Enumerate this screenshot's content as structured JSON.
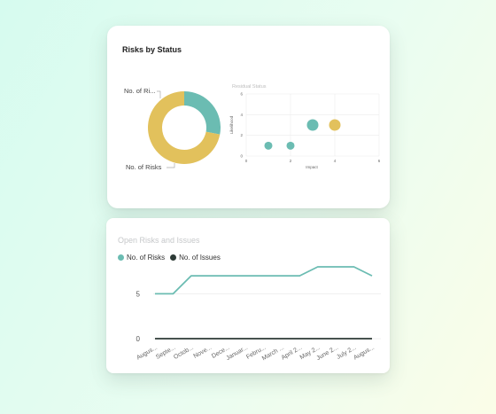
{
  "colors": {
    "teal": "#6bbcb2",
    "gold": "#e2c15c",
    "dark": "#2d3a36",
    "grid": "#ececec",
    "axis_text": "#666666"
  },
  "top_card": {
    "title": "Risks by Status"
  },
  "bottom_card": {
    "title": "Open Risks and Issues"
  },
  "chart_data": [
    {
      "type": "pie",
      "variant": "donut",
      "title": "",
      "slices": [
        {
          "label": "No. of Ri...",
          "value": 28,
          "color": "#6bbcb2"
        },
        {
          "label": "No. of Risks",
          "value": 72,
          "color": "#e2c15c"
        }
      ]
    },
    {
      "type": "scatter",
      "title": "Residual Status",
      "xlabel": "Impact",
      "ylabel": "Likelihood",
      "xlim": [
        0,
        6
      ],
      "ylim": [
        0,
        6
      ],
      "xticks": [
        "0",
        "2",
        "4",
        "6"
      ],
      "yticks": [
        "0",
        "2",
        "4",
        "6"
      ],
      "grid": true,
      "points": [
        {
          "x": 1,
          "y": 1,
          "size": "small",
          "color": "#6bbcb2"
        },
        {
          "x": 2,
          "y": 1,
          "size": "small",
          "color": "#6bbcb2"
        },
        {
          "x": 3,
          "y": 3,
          "size": "large",
          "color": "#6bbcb2"
        },
        {
          "x": 4,
          "y": 3,
          "size": "large",
          "color": "#e2c15c"
        }
      ]
    },
    {
      "type": "line",
      "title": "Open Risks and Issues",
      "legend": "top-left",
      "ylim": [
        0,
        8
      ],
      "yticks": [
        "0",
        "5"
      ],
      "grid": true,
      "categories": [
        "Augus...",
        "Septe...",
        "Octob...",
        "Nove...",
        "Dece...",
        "Januar...",
        "Febru...",
        "March ...",
        "April 2...",
        "May 2...",
        "June 2...",
        "July 2...",
        "Augus..."
      ],
      "series": [
        {
          "name": "No. of Risks",
          "color": "#6bbcb2",
          "values": [
            5,
            5,
            7,
            7,
            7,
            7,
            7,
            7,
            7,
            8,
            8,
            8,
            7
          ]
        },
        {
          "name": "No. of Issues",
          "color": "#2d3a36",
          "values": [
            0,
            0,
            0,
            0,
            0,
            0,
            0,
            0,
            0,
            0,
            0,
            0,
            0
          ]
        }
      ]
    }
  ]
}
